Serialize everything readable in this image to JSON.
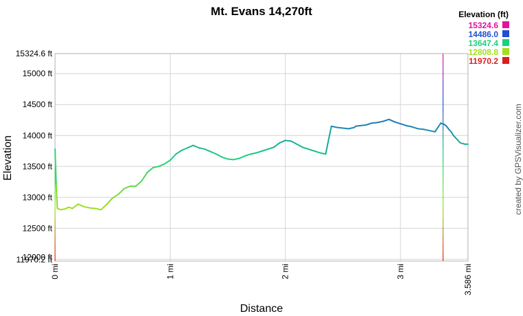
{
  "chart_data": {
    "type": "line",
    "title": "Mt. Evans 14,270ft",
    "xlabel": "Distance",
    "ylabel": "Elevation",
    "xlim": [
      0,
      3.586
    ],
    "ylim": [
      11970.2,
      15324.6
    ],
    "x_ticks": [
      {
        "value": 0,
        "label": "0 mi"
      },
      {
        "value": 1,
        "label": "1 mi"
      },
      {
        "value": 2,
        "label": "2 mi"
      },
      {
        "value": 3,
        "label": "3 mi"
      },
      {
        "value": 3.586,
        "label": "3.586 mi"
      }
    ],
    "y_ticks": [
      {
        "value": 11970.2,
        "label": "11970.2 ft"
      },
      {
        "value": 12000,
        "label": "12000 ft"
      },
      {
        "value": 12500,
        "label": "12500 ft"
      },
      {
        "value": 13000,
        "label": "13000 ft"
      },
      {
        "value": 13500,
        "label": "13500 ft"
      },
      {
        "value": 14000,
        "label": "14000 ft"
      },
      {
        "value": 14500,
        "label": "14500 ft"
      },
      {
        "value": 15000,
        "label": "15000 ft"
      },
      {
        "value": 15324.6,
        "label": "15324.6 ft"
      }
    ],
    "grid": true,
    "legend": {
      "title": "Elevation (ft)",
      "placement": "top-right",
      "entries": [
        {
          "label": "15324.6",
          "color": "#e0139f"
        },
        {
          "label": "14486.0",
          "color": "#1f4fd6"
        },
        {
          "label": "13647.4",
          "color": "#19d27f"
        },
        {
          "label": "12808.8",
          "color": "#a2df1d"
        },
        {
          "label": "11970.2",
          "color": "#dd1e1e"
        }
      ]
    },
    "series": [
      {
        "x": [
          0.0,
          0.01,
          0.02,
          0.05,
          0.08,
          0.12,
          0.15,
          0.2,
          0.25,
          0.3,
          0.35,
          0.4,
          0.45,
          0.5,
          0.55,
          0.6,
          0.65,
          0.7,
          0.75,
          0.8,
          0.85,
          0.9,
          0.95,
          1.0,
          1.05,
          1.1,
          1.15,
          1.2,
          1.25,
          1.3,
          1.35,
          1.4,
          1.45,
          1.5,
          1.55,
          1.6,
          1.65,
          1.7,
          1.75,
          1.8,
          1.85,
          1.9,
          1.95,
          2.0,
          2.05,
          2.1,
          2.15,
          2.2,
          2.25,
          2.3,
          2.35,
          2.4,
          2.45,
          2.5,
          2.55,
          2.6,
          2.61,
          2.65,
          2.7,
          2.75,
          2.8,
          2.85,
          2.9,
          2.95,
          3.0,
          3.05,
          3.1,
          3.15,
          3.2,
          3.25,
          3.3,
          3.35,
          3.38,
          3.4,
          3.42,
          3.44,
          3.46,
          3.48,
          3.5,
          3.52,
          3.54,
          3.56,
          3.586
        ],
        "y": [
          13780,
          13200,
          12820,
          12800,
          12810,
          12840,
          12820,
          12890,
          12850,
          12830,
          12820,
          12800,
          12890,
          12990,
          13050,
          13140,
          13180,
          13180,
          13260,
          13400,
          13480,
          13500,
          13540,
          13600,
          13700,
          13760,
          13800,
          13840,
          13800,
          13780,
          13740,
          13700,
          13650,
          13620,
          13610,
          13630,
          13670,
          13700,
          13720,
          13750,
          13780,
          13810,
          13880,
          13920,
          13910,
          13860,
          13810,
          13780,
          13750,
          13720,
          13700,
          14150,
          14130,
          14120,
          14110,
          14130,
          14150,
          14160,
          14170,
          14200,
          14210,
          14230,
          14260,
          14220,
          14190,
          14160,
          14140,
          14110,
          14100,
          14080,
          14060,
          14200,
          14180,
          14150,
          14100,
          14060,
          14000,
          13960,
          13920,
          13880,
          13870,
          13860,
          13860
        ]
      }
    ],
    "markers": [
      {
        "x": 0.0,
        "y_from": 11970.2,
        "y_to": 13500
      },
      {
        "x": 3.37,
        "y_from": 11970.2,
        "y_to": 15324.6
      }
    ],
    "credit": "created by GPSVisualizer.com"
  }
}
